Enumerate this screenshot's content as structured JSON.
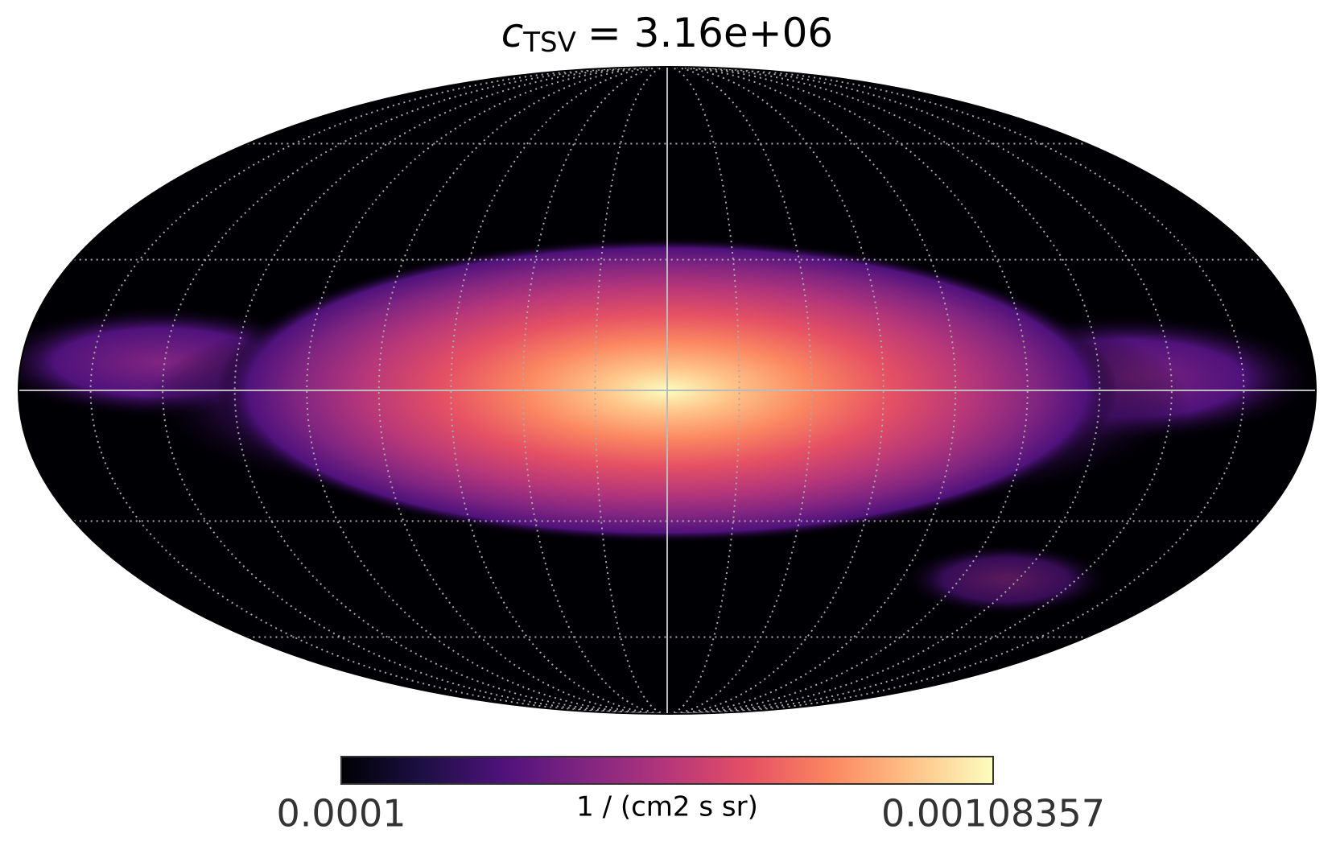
{
  "chart_data": {
    "type": "mollweide",
    "title": {
      "symbol": "c",
      "subscript": "TSV",
      "text": "= 3.16e+06"
    },
    "colorbar": {
      "min": 0.0001,
      "max": 0.00108357,
      "label": "1 / (cm2 s sr)",
      "cmap": "magma"
    },
    "graticule": true
  }
}
